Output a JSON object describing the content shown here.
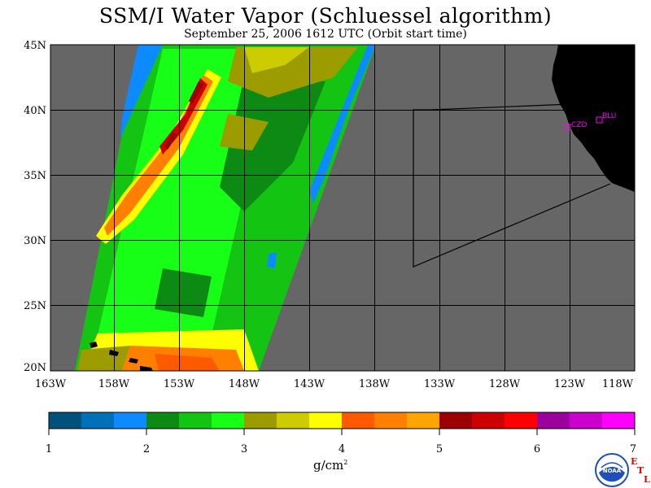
{
  "title": "SSM/I Water Vapor (Schluessel algorithm)",
  "subtitle": "September 25, 2006  1612 UTC  (Orbit start time)",
  "lat_labels": [
    "45N",
    "40N",
    "35N",
    "30N",
    "25N",
    "20N"
  ],
  "lon_labels": [
    "163W",
    "158W",
    "153W",
    "148W",
    "143W",
    "138W",
    "133W",
    "128W",
    "123W",
    "118W"
  ],
  "stations": [
    {
      "code": "CZD",
      "lat": 38.6,
      "lon": -122.9
    },
    {
      "code": "BLU",
      "lat": 39.3,
      "lon": -120.8
    }
  ],
  "colorbar": {
    "min": 1,
    "max": 7,
    "tick_labels": [
      "1",
      "2",
      "3",
      "4",
      "5",
      "6",
      "7"
    ],
    "unit_main": "g/cm",
    "unit_sup": "2",
    "colors": [
      "#00527a",
      "#0070b8",
      "#0d8aff",
      "#0c8a14",
      "#13c413",
      "#17ff17",
      "#9c9c00",
      "#cccc00",
      "#ffff00",
      "#ff5a00",
      "#ff7f00",
      "#ffa500",
      "#9c0000",
      "#cc0000",
      "#ff0000",
      "#9c009c",
      "#cc00cc",
      "#ff00ff"
    ]
  },
  "colors": {
    "land": "#000000",
    "ocean_missing": "#666666",
    "station": "#ff00ff",
    "logo_blue": "#1f4fb8",
    "etl_red": "#e00000"
  },
  "logo": {
    "text": "NOAA",
    "side_letters": [
      "E",
      "T",
      "L"
    ]
  }
}
